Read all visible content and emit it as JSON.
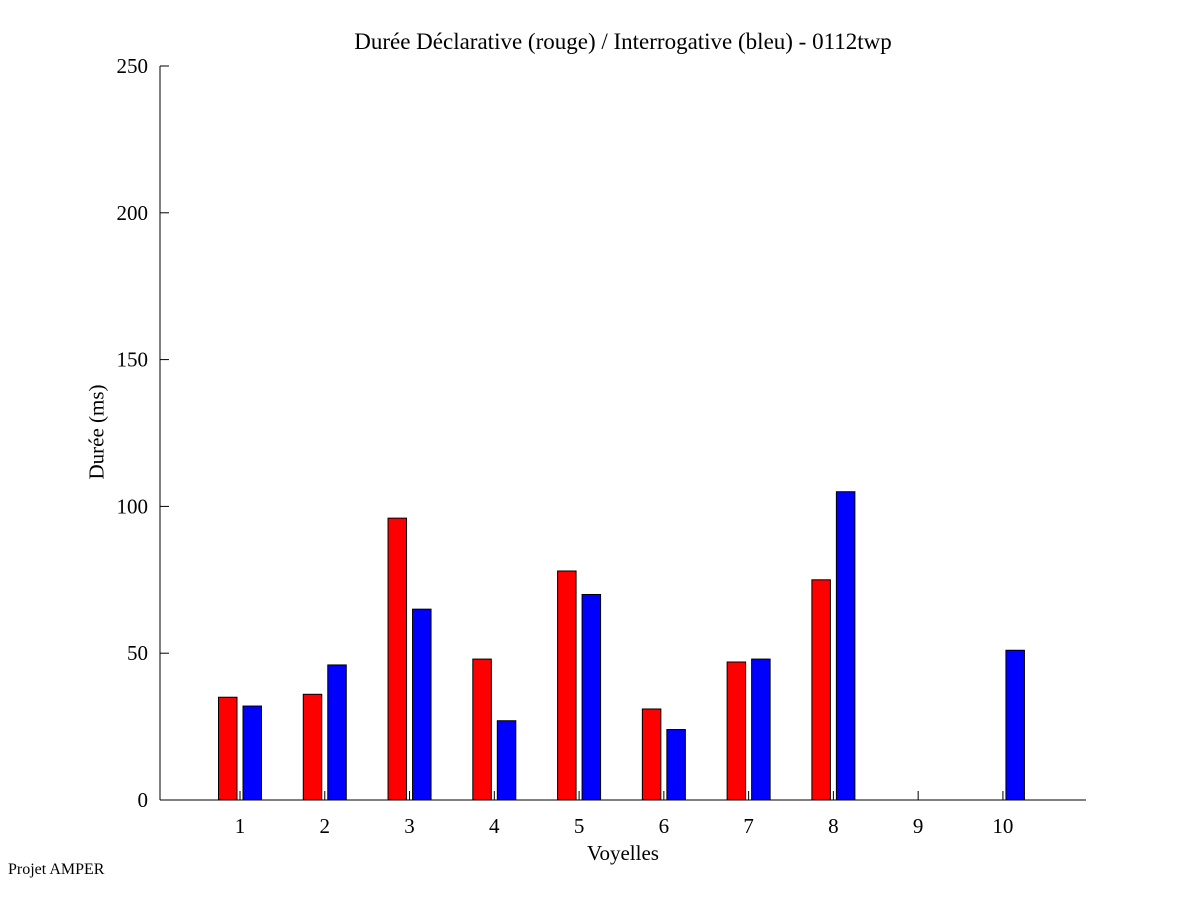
{
  "page": {
    "background": "#FFFFFF"
  },
  "footer": {
    "note": "Projet AMPER"
  },
  "chart_data": {
    "type": "bar",
    "title": "Durée Déclarative (rouge) / Interrogative (bleu) - 0112twp",
    "xlabel": "Voyelles",
    "ylabel": "Durée (ms)",
    "categories": [
      "1",
      "2",
      "3",
      "4",
      "5",
      "6",
      "7",
      "8",
      "9",
      "10"
    ],
    "series": [
      {
        "name": "Déclarative (rouge)",
        "color": "#FF0000",
        "values": [
          35,
          36,
          96,
          48,
          78,
          31,
          47,
          75,
          0,
          0
        ]
      },
      {
        "name": "Interrogative (bleu)",
        "color": "#0000FF",
        "values": [
          32,
          46,
          65,
          27,
          70,
          24,
          48,
          105,
          0,
          51
        ]
      }
    ],
    "ylim": [
      0,
      250
    ],
    "y_ticks": [
      0,
      50,
      100,
      150,
      200,
      250
    ],
    "grid": false,
    "legend_position": "none (encoded in title: rouge = red declarative, bleu = blue interrogative)",
    "bar_edge_color": "#000000",
    "axis_color": "#000000"
  }
}
